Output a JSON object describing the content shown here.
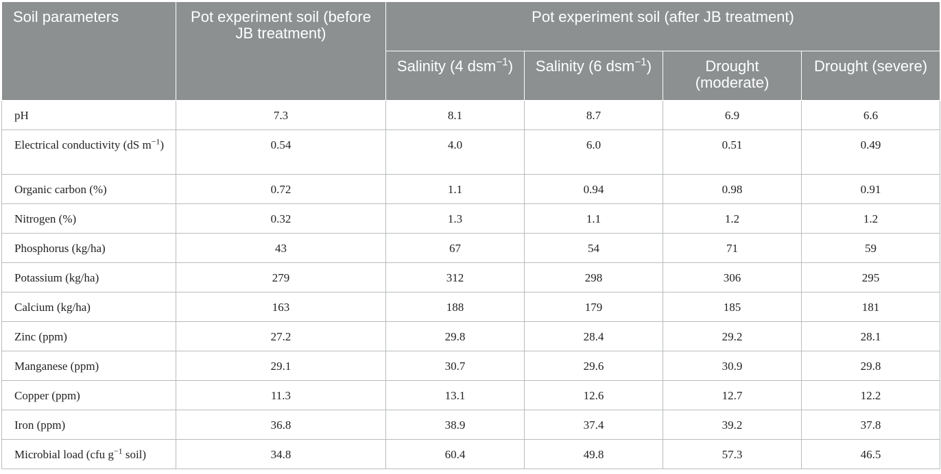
{
  "table": {
    "headers": {
      "param": "Soil parameters",
      "before": "Pot experiment soil (before JB treatment)",
      "after": "Pot experiment soil (after JB treatment)",
      "sub": [
        {
          "pre": "Salinity (4 dsm",
          "sup": "−1",
          "post": ")"
        },
        {
          "pre": "Salinity (6 dsm",
          "sup": "−1",
          "post": ")"
        },
        {
          "pre": "Drought (moderate)",
          "sup": "",
          "post": ""
        },
        {
          "pre": "Drought (severe)",
          "sup": "",
          "post": ""
        }
      ]
    },
    "rows": [
      {
        "pre": "pH",
        "sup": "",
        "post": "",
        "values": [
          "7.3",
          "8.1",
          "8.7",
          "6.9",
          "6.6"
        ]
      },
      {
        "pre": "Electrical conductivity (dS m",
        "sup": "−1",
        "post": ")",
        "values": [
          "0.54",
          "4.0",
          "6.0",
          "0.51",
          "0.49"
        ]
      },
      {
        "pre": "Organic carbon (%)",
        "sup": "",
        "post": "",
        "values": [
          "0.72",
          "1.1",
          "0.94",
          "0.98",
          "0.91"
        ]
      },
      {
        "pre": "Nitrogen (%)",
        "sup": "",
        "post": "",
        "values": [
          "0.32",
          "1.3",
          "1.1",
          "1.2",
          "1.2"
        ]
      },
      {
        "pre": "Phosphorus (kg/ha)",
        "sup": "",
        "post": "",
        "values": [
          "43",
          "67",
          "54",
          "71",
          "59"
        ]
      },
      {
        "pre": "Potassium (kg/ha)",
        "sup": "",
        "post": "",
        "values": [
          "279",
          "312",
          "298",
          "306",
          "295"
        ]
      },
      {
        "pre": "Calcium (kg/ha)",
        "sup": "",
        "post": "",
        "values": [
          "163",
          "188",
          "179",
          "185",
          "181"
        ]
      },
      {
        "pre": "Zinc (ppm)",
        "sup": "",
        "post": "",
        "values": [
          "27.2",
          "29.8",
          "28.4",
          "29.2",
          "28.1"
        ]
      },
      {
        "pre": "Manganese (ppm)",
        "sup": "",
        "post": "",
        "values": [
          "29.1",
          "30.7",
          "29.6",
          "30.9",
          "29.8"
        ]
      },
      {
        "pre": "Copper (ppm)",
        "sup": "",
        "post": "",
        "values": [
          "11.3",
          "13.1",
          "12.6",
          "12.7",
          "12.2"
        ]
      },
      {
        "pre": "Iron (ppm)",
        "sup": "",
        "post": "",
        "values": [
          "36.8",
          "38.9",
          "37.4",
          "39.2",
          "37.8"
        ]
      },
      {
        "pre": "Microbial load (cfu g",
        "sup": "−1",
        "post": " soil)",
        "values": [
          "34.8",
          "60.4",
          "49.8",
          "57.3",
          "46.5"
        ]
      }
    ]
  }
}
